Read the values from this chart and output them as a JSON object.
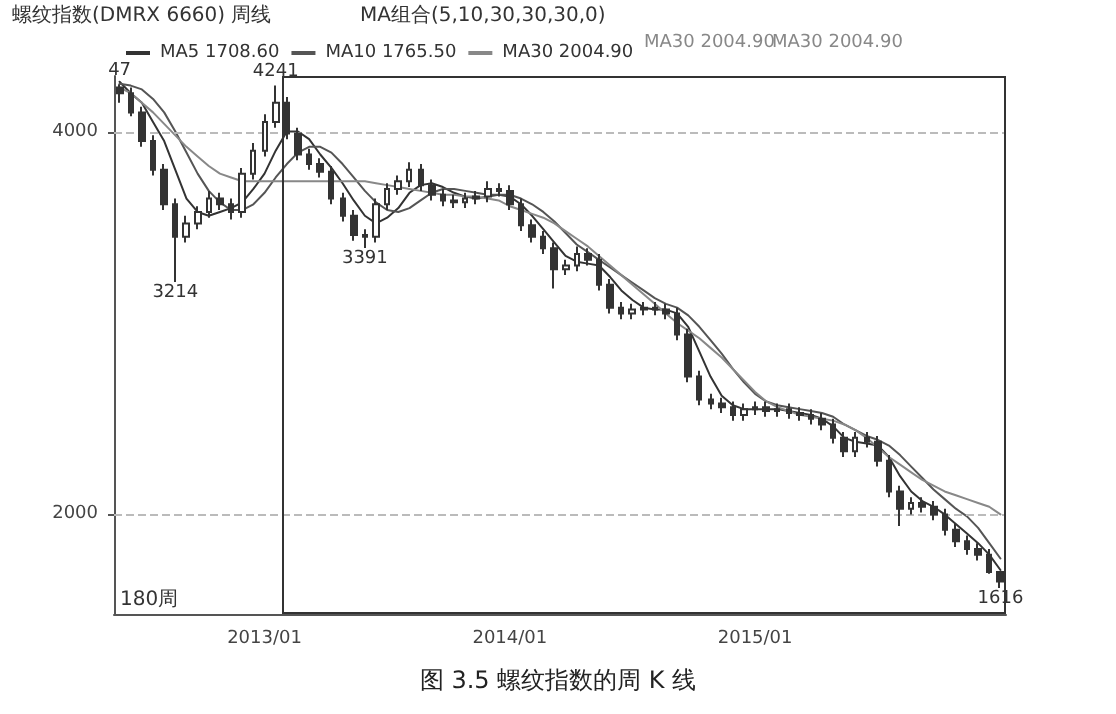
{
  "chart_data": {
    "type": "candlestick",
    "title": "图 3.5 螺纹指数的周 K 线",
    "annotations": [
      "螺纹指数(DMRX 6660) 周线",
      "MA组合(5,10,30,30,30,0)",
      "MA30 2004.90",
      "MA30 2004.90",
      "180周",
      {
        "text": "47",
        "y": 4247
      },
      {
        "text": "4241",
        "y": 4241
      },
      {
        "text": "3214",
        "y": 3214
      },
      {
        "text": "3391",
        "y": 3391
      },
      {
        "text": "1616",
        "y": 1616
      }
    ],
    "categories": [
      null,
      null,
      null,
      null,
      null,
      null,
      null,
      null,
      null,
      null,
      null,
      null,
      null,
      "2013/01",
      null,
      null,
      null,
      null,
      null,
      null,
      null,
      null,
      null,
      null,
      null,
      null,
      null,
      null,
      null,
      null,
      null,
      null,
      null,
      null,
      null,
      "2014/01",
      null,
      null,
      null,
      null,
      null,
      null,
      null,
      null,
      null,
      null,
      null,
      null,
      null,
      null,
      null,
      null,
      null,
      null,
      null,
      null,
      null,
      "2015/01",
      null,
      null,
      null,
      null,
      null,
      null,
      null,
      null,
      null,
      null,
      null,
      null,
      null,
      null,
      null,
      null,
      null,
      null,
      null,
      null,
      null,
      null
    ],
    "color": "#333333",
    "ohlc": [
      [
        4230,
        4247,
        4150,
        4200
      ],
      [
        4200,
        4230,
        4080,
        4100
      ],
      [
        4100,
        4130,
        3920,
        3950
      ],
      [
        3950,
        3980,
        3770,
        3800
      ],
      [
        3800,
        3830,
        3590,
        3620
      ],
      [
        3620,
        3650,
        3214,
        3450
      ],
      [
        3450,
        3560,
        3420,
        3520
      ],
      [
        3520,
        3610,
        3490,
        3580
      ],
      [
        3580,
        3690,
        3550,
        3650
      ],
      [
        3650,
        3680,
        3590,
        3620
      ],
      [
        3620,
        3650,
        3540,
        3580
      ],
      [
        3580,
        3810,
        3550,
        3780
      ],
      [
        3780,
        3940,
        3750,
        3900
      ],
      [
        3900,
        4090,
        3870,
        4050
      ],
      [
        4050,
        4241,
        4020,
        4150
      ],
      [
        4150,
        4180,
        3960,
        3990
      ],
      [
        3990,
        4020,
        3850,
        3880
      ],
      [
        3880,
        3910,
        3800,
        3830
      ],
      [
        3830,
        3860,
        3760,
        3790
      ],
      [
        3790,
        3820,
        3620,
        3650
      ],
      [
        3650,
        3680,
        3530,
        3560
      ],
      [
        3560,
        3590,
        3430,
        3460
      ],
      [
        3460,
        3490,
        3391,
        3450
      ],
      [
        3450,
        3650,
        3420,
        3620
      ],
      [
        3620,
        3730,
        3590,
        3700
      ],
      [
        3700,
        3770,
        3670,
        3740
      ],
      [
        3740,
        3840,
        3710,
        3800
      ],
      [
        3800,
        3830,
        3690,
        3720
      ],
      [
        3720,
        3750,
        3640,
        3670
      ],
      [
        3670,
        3700,
        3610,
        3640
      ],
      [
        3640,
        3670,
        3600,
        3630
      ],
      [
        3630,
        3680,
        3600,
        3650
      ],
      [
        3650,
        3690,
        3620,
        3660
      ],
      [
        3660,
        3740,
        3630,
        3700
      ],
      [
        3700,
        3730,
        3660,
        3690
      ],
      [
        3690,
        3720,
        3590,
        3620
      ],
      [
        3620,
        3650,
        3480,
        3510
      ],
      [
        3510,
        3540,
        3420,
        3450
      ],
      [
        3450,
        3480,
        3360,
        3390
      ],
      [
        3390,
        3420,
        3180,
        3280
      ],
      [
        3280,
        3330,
        3250,
        3300
      ],
      [
        3300,
        3400,
        3270,
        3360
      ],
      [
        3360,
        3390,
        3300,
        3330
      ],
      [
        3330,
        3360,
        3170,
        3200
      ],
      [
        3200,
        3230,
        3050,
        3080
      ],
      [
        3080,
        3110,
        3020,
        3050
      ],
      [
        3050,
        3100,
        3020,
        3070
      ],
      [
        3070,
        3110,
        3040,
        3080
      ],
      [
        3080,
        3110,
        3040,
        3070
      ],
      [
        3070,
        3100,
        3020,
        3050
      ],
      [
        3050,
        3080,
        2910,
        2940
      ],
      [
        2940,
        2970,
        2690,
        2720
      ],
      [
        2720,
        2750,
        2570,
        2600
      ],
      [
        2600,
        2630,
        2550,
        2580
      ],
      [
        2580,
        2610,
        2530,
        2560
      ],
      [
        2560,
        2590,
        2490,
        2520
      ],
      [
        2520,
        2580,
        2490,
        2550
      ],
      [
        2550,
        2590,
        2520,
        2560
      ],
      [
        2560,
        2590,
        2510,
        2540
      ],
      [
        2540,
        2580,
        2510,
        2550
      ],
      [
        2550,
        2580,
        2500,
        2530
      ],
      [
        2530,
        2560,
        2490,
        2520
      ],
      [
        2520,
        2550,
        2470,
        2500
      ],
      [
        2500,
        2530,
        2440,
        2470
      ],
      [
        2470,
        2500,
        2370,
        2400
      ],
      [
        2400,
        2430,
        2300,
        2330
      ],
      [
        2330,
        2430,
        2300,
        2400
      ],
      [
        2400,
        2430,
        2350,
        2380
      ],
      [
        2380,
        2410,
        2250,
        2280
      ],
      [
        2280,
        2310,
        2090,
        2120
      ],
      [
        2120,
        2150,
        1940,
        2030
      ],
      [
        2030,
        2090,
        2000,
        2060
      ],
      [
        2060,
        2090,
        2010,
        2040
      ],
      [
        2040,
        2070,
        1970,
        2000
      ],
      [
        2000,
        2030,
        1890,
        1920
      ],
      [
        1920,
        1950,
        1830,
        1860
      ],
      [
        1860,
        1890,
        1790,
        1820
      ],
      [
        1820,
        1850,
        1760,
        1790
      ],
      [
        1790,
        1820,
        1690,
        1700
      ],
      [
        1700,
        1705,
        1616,
        1650
      ]
    ],
    "series": [
      {
        "name": "MA5 1708.60",
        "type": "line",
        "color": "#333333",
        "values": [
          4260,
          4200,
          4150,
          4050,
          3950,
          3800,
          3650,
          3580,
          3560,
          3580,
          3600,
          3630,
          3700,
          3780,
          3900,
          4000,
          4000,
          3960,
          3880,
          3810,
          3730,
          3640,
          3560,
          3520,
          3550,
          3600,
          3680,
          3720,
          3730,
          3710,
          3680,
          3660,
          3650,
          3660,
          3670,
          3660,
          3620,
          3560,
          3490,
          3420,
          3350,
          3320,
          3310,
          3300,
          3240,
          3170,
          3120,
          3080,
          3070,
          3070,
          3050,
          2980,
          2850,
          2720,
          2620,
          2570,
          2550,
          2550,
          2550,
          2550,
          2540,
          2530,
          2520,
          2500,
          2460,
          2400,
          2380,
          2370,
          2360,
          2300,
          2200,
          2120,
          2070,
          2040,
          2000,
          1950,
          1900,
          1850,
          1790,
          1710
        ]
      },
      {
        "name": "MA10 1765.50",
        "type": "line",
        "color": "#555555",
        "values": [
          4250,
          4240,
          4220,
          4170,
          4100,
          4000,
          3890,
          3780,
          3690,
          3630,
          3590,
          3590,
          3620,
          3680,
          3760,
          3830,
          3890,
          3920,
          3920,
          3890,
          3830,
          3760,
          3690,
          3630,
          3590,
          3580,
          3600,
          3640,
          3680,
          3700,
          3700,
          3690,
          3680,
          3670,
          3670,
          3670,
          3650,
          3620,
          3580,
          3530,
          3470,
          3410,
          3370,
          3330,
          3290,
          3250,
          3210,
          3170,
          3130,
          3100,
          3080,
          3040,
          2980,
          2910,
          2840,
          2760,
          2690,
          2630,
          2590,
          2570,
          2560,
          2550,
          2540,
          2530,
          2510,
          2470,
          2440,
          2410,
          2390,
          2360,
          2310,
          2250,
          2190,
          2130,
          2080,
          2030,
          1990,
          1930,
          1850,
          1770
        ]
      },
      {
        "name": "MA30 2004.90",
        "type": "line",
        "color": "#888888",
        "values": [
          4230,
          4200,
          4150,
          4100,
          4040,
          3980,
          3920,
          3870,
          3820,
          3780,
          3760,
          3740,
          3740,
          3740,
          3740,
          3740,
          3740,
          3740,
          3740,
          3740,
          3740,
          3740,
          3740,
          3730,
          3720,
          3710,
          3700,
          3690,
          3680,
          3670,
          3670,
          3660,
          3660,
          3650,
          3640,
          3610,
          3590,
          3570,
          3550,
          3520,
          3480,
          3440,
          3400,
          3350,
          3300,
          3250,
          3200,
          3150,
          3100,
          3050,
          3000,
          2960,
          2920,
          2870,
          2820,
          2760,
          2700,
          2640,
          2590,
          2560,
          2540,
          2520,
          2510,
          2500,
          2490,
          2470,
          2440,
          2400,
          2350,
          2300,
          2260,
          2220,
          2180,
          2150,
          2120,
          2100,
          2080,
          2060,
          2040,
          2000
        ]
      }
    ],
    "ylim": [
      1480,
      4290
    ],
    "yticks": [
      2000,
      4000
    ],
    "grid": "y",
    "legend": "top left",
    "marker": "none"
  }
}
